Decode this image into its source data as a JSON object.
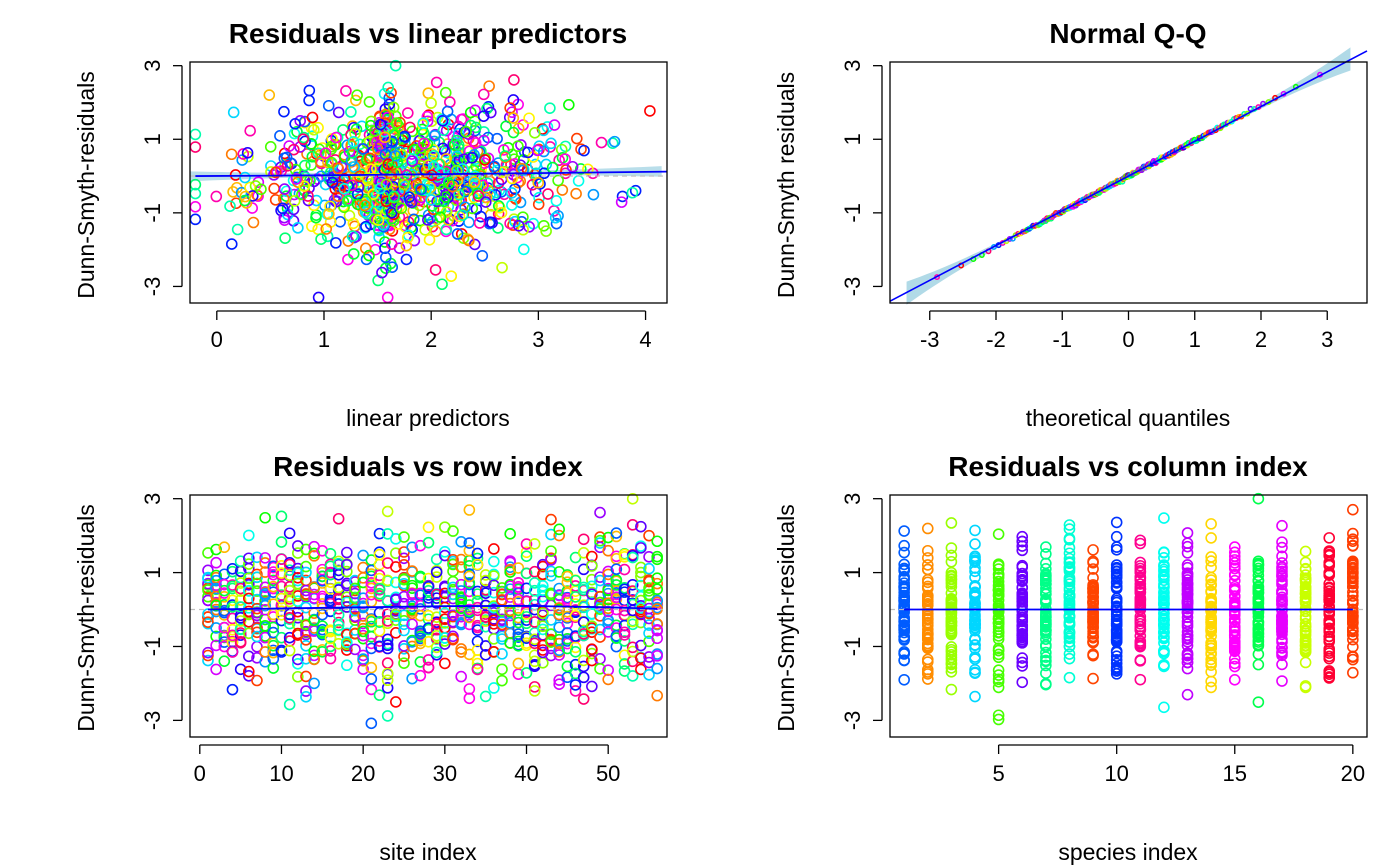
{
  "palette": [
    "#FF0000",
    "#FF3D00",
    "#FF7A00",
    "#FFB800",
    "#FFF500",
    "#C2FF00",
    "#85FF00",
    "#47FF00",
    "#0AFF00",
    "#00FF33",
    "#00FF70",
    "#00FFAD",
    "#00FFEB",
    "#00D6FF",
    "#0099FF",
    "#005CFF",
    "#001FFF",
    "#1F00FF",
    "#5C00FF",
    "#9900FF",
    "#D600FF",
    "#FF00EB",
    "#FF00AD",
    "#FF0070"
  ],
  "fit_line_color": "#0000FF",
  "ci_band_color": "#ADD8E6",
  "reference_line_color": "#BEBEBE",
  "chart_data": [
    {
      "type": "scatter",
      "title": "Residuals vs linear predictors",
      "xlabel": "linear predictors",
      "ylabel": "Dunn-Smyth-residuals",
      "xlim": [
        -0.25,
        4.2
      ],
      "ylim": [
        -3.45,
        3.1
      ],
      "xticks": [
        0,
        1,
        2,
        3,
        4
      ],
      "yticks": [
        -3,
        -1,
        1,
        3
      ],
      "n_points": 1120,
      "x_range": [
        -0.2,
        4.1
      ],
      "y_range": [
        -3.3,
        3.0
      ],
      "smooth_line": [
        [
          -0.2,
          0.0
        ],
        [
          1.0,
          0.02
        ],
        [
          2.0,
          0.05
        ],
        [
          3.0,
          0.08
        ],
        [
          4.2,
          0.12
        ]
      ],
      "confidence_band": true
    },
    {
      "type": "scatter",
      "title": "Normal Q-Q",
      "xlabel": "theoretical quantiles",
      "ylabel": "Dunn-Smyth residuals",
      "xlim": [
        -3.6,
        3.6
      ],
      "ylim": [
        -3.45,
        3.1
      ],
      "xticks": [
        -3,
        -2,
        -1,
        0,
        1,
        2,
        3
      ],
      "yticks": [
        -3,
        -1,
        1,
        3
      ],
      "n_points": 1120,
      "reference_line": [
        [
          -3.6,
          -3.4
        ],
        [
          3.6,
          3.4
        ]
      ],
      "confidence_band": true
    },
    {
      "type": "scatter",
      "title": "Residuals vs row index",
      "xlabel": "site index",
      "ylabel": "Dunn-Smyth-residuals",
      "xlim": [
        -1.2,
        57.2
      ],
      "ylim": [
        -3.45,
        3.1
      ],
      "xticks": [
        0,
        10,
        20,
        30,
        40,
        50
      ],
      "yticks": [
        -3,
        -1,
        1,
        3
      ],
      "x_categories": 56,
      "points_per_x": 20,
      "smooth_line": [
        [
          1,
          0.0
        ],
        [
          10,
          0.03
        ],
        [
          20,
          0.06
        ],
        [
          30,
          0.09
        ],
        [
          40,
          0.1
        ],
        [
          50,
          0.06
        ],
        [
          56,
          0.02
        ]
      ]
    },
    {
      "type": "scatter",
      "title": "Residuals vs column index",
      "xlabel": "species index",
      "ylabel": "Dunn-Smyth-residuals",
      "xlim": [
        0.4,
        20.6
      ],
      "ylim": [
        -3.45,
        3.1
      ],
      "xticks": [
        5,
        10,
        15,
        20
      ],
      "yticks": [
        -3,
        -1,
        1,
        3
      ],
      "x_categories": 20,
      "points_per_x": 56,
      "smooth_line": [
        [
          1,
          0.0
        ],
        [
          20,
          0.0
        ]
      ]
    }
  ]
}
